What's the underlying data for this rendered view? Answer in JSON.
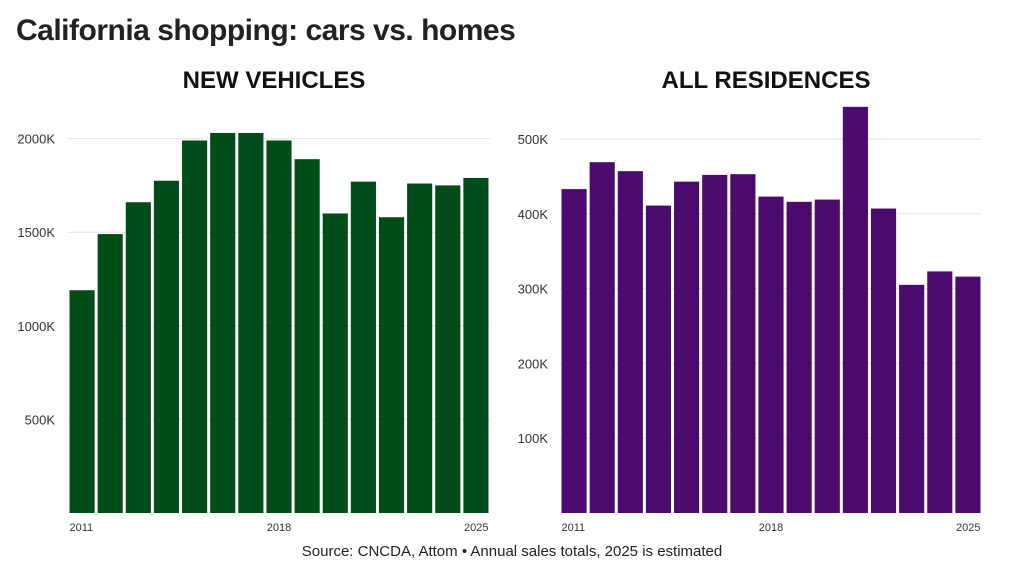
{
  "title": "California shopping: cars vs. homes",
  "source": "Source: CNCDA, Attom • Annual sales totals, 2025 is estimated",
  "chart_data": [
    {
      "type": "bar",
      "title": "NEW VEHICLES",
      "color": "#004d1a",
      "categories": [
        "2011",
        "2012",
        "2013",
        "2014",
        "2015",
        "2016",
        "2017",
        "2018",
        "2019",
        "2020",
        "2021",
        "2022",
        "2023",
        "2024",
        "2025"
      ],
      "x_tick_labels": [
        "2011",
        "2018",
        "2025"
      ],
      "values": [
        1190,
        1490,
        1660,
        1775,
        1990,
        2030,
        2030,
        1990,
        1890,
        1600,
        1770,
        1580,
        1760,
        1750,
        1790
      ],
      "unit": "thousands",
      "y_ticks": [
        500,
        1000,
        1500,
        2000
      ],
      "y_tick_labels": [
        "500K",
        "1000K",
        "1500K",
        "2000K"
      ],
      "ylim": [
        0,
        2100
      ],
      "grid": true
    },
    {
      "type": "bar",
      "title": "ALL RESIDENCES",
      "color": "#4b0a6e",
      "categories": [
        "2011",
        "2012",
        "2013",
        "2014",
        "2015",
        "2016",
        "2017",
        "2018",
        "2019",
        "2020",
        "2021",
        "2022",
        "2023",
        "2024",
        "2025"
      ],
      "x_tick_labels": [
        "2011",
        "2018",
        "2025"
      ],
      "values": [
        433,
        469,
        457,
        411,
        443,
        452,
        453,
        423,
        416,
        419,
        543,
        407,
        305,
        323,
        316
      ],
      "unit": "thousands",
      "y_ticks": [
        100,
        200,
        300,
        400,
        500
      ],
      "y_tick_labels": [
        "100K",
        "200K",
        "300K",
        "400K",
        "500K"
      ],
      "ylim": [
        0,
        550
      ],
      "grid": true
    }
  ]
}
